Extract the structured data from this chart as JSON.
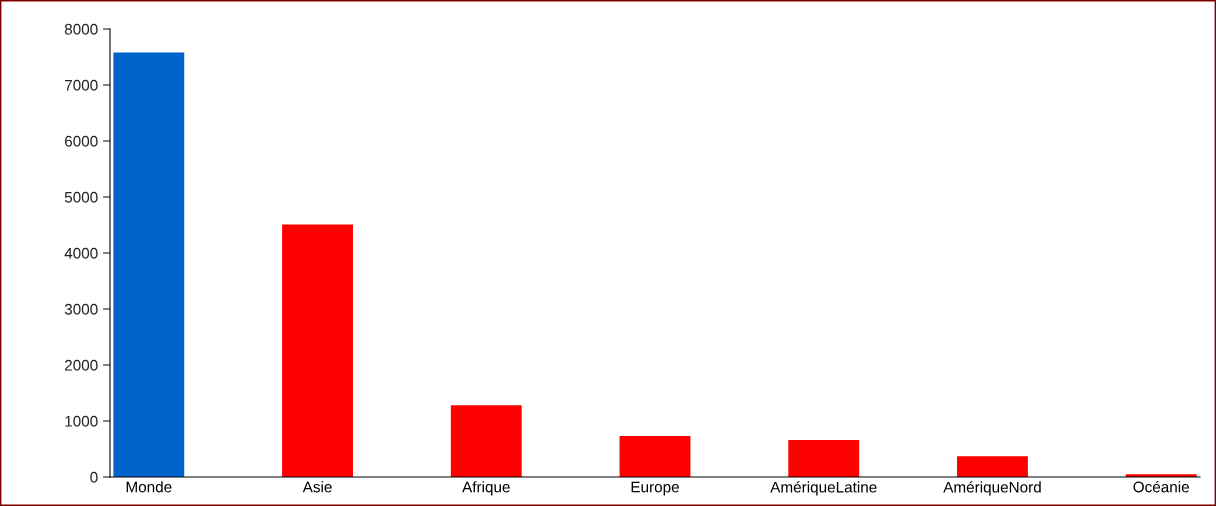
{
  "chart_data": {
    "type": "bar",
    "categories": [
      "Monde",
      "Asie",
      "Afrique",
      "Europe",
      "AmériqueLatine",
      "AmériqueNord",
      "Océanie"
    ],
    "values": [
      7580,
      4510,
      1280,
      730,
      660,
      370,
      50
    ],
    "colors": [
      "#0063cc",
      "#ff0000",
      "#ff0000",
      "#ff0000",
      "#ff0000",
      "#ff0000",
      "#ff0000"
    ],
    "ylim": [
      0,
      8000
    ],
    "yticks": [
      0,
      1000,
      2000,
      3000,
      4000,
      5000,
      6000,
      7000,
      8000
    ],
    "grid": false
  }
}
